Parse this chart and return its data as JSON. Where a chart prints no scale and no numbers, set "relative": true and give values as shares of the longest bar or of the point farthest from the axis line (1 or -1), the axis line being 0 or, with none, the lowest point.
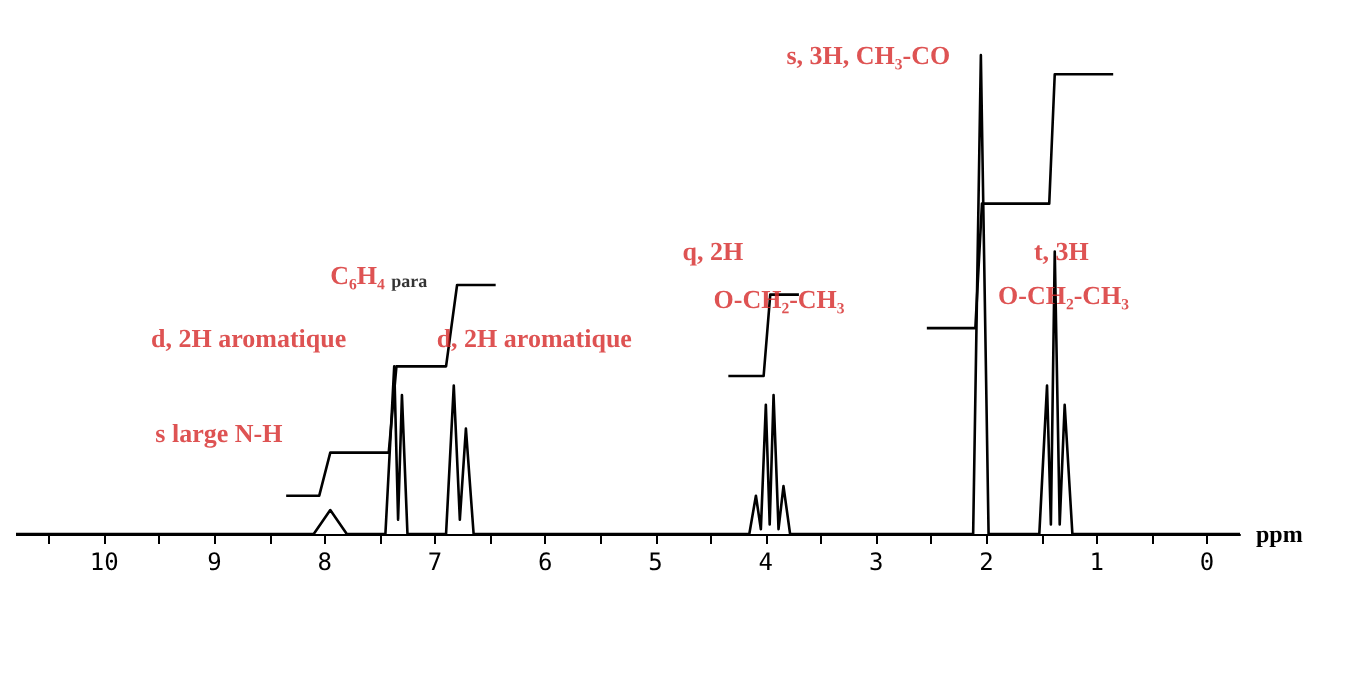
{
  "chart_data": {
    "type": "line",
    "relative": true,
    "xlabel": "ppm",
    "xlim": [
      10.8,
      -0.3
    ],
    "xticks": [
      0,
      {
        "value": 0.5,
        "label": null
      },
      1,
      {
        "value": 1.5,
        "label": null
      },
      2,
      {
        "value": 2.5,
        "label": null
      },
      3,
      {
        "value": 3.5,
        "label": null
      },
      4,
      {
        "value": 4.5,
        "label": null
      },
      5,
      {
        "value": 5.5,
        "label": null
      },
      6,
      {
        "value": 6.5,
        "label": null
      },
      7,
      {
        "value": 7.5,
        "label": null
      },
      8,
      {
        "value": 8.5,
        "label": null
      },
      9,
      {
        "value": 9.5,
        "label": null
      },
      10,
      {
        "value": 10.5,
        "label": null
      }
    ],
    "grid": false,
    "marker": "none",
    "line_style": "solid",
    "series": [
      {
        "color": "#000000",
        "x": [
          10.8,
          8.1,
          7.95,
          7.8,
          7.45,
          7.37,
          7.335,
          7.3,
          7.25,
          6.9,
          6.83,
          6.775,
          6.72,
          6.65,
          4.15,
          4.09,
          4.045,
          4.0,
          3.965,
          3.93,
          3.885,
          3.84,
          3.78,
          2.12,
          2.05,
          1.98,
          1.52,
          1.45,
          1.415,
          1.38,
          1.335,
          1.29,
          1.22,
          -0.3
        ],
        "values": [
          0,
          0,
          0.05,
          0,
          0,
          0.35,
          0.03,
          0.29,
          0,
          0,
          0.31,
          0.03,
          0.22,
          0,
          0,
          0.08,
          0.01,
          0.27,
          0.02,
          0.29,
          0.01,
          0.1,
          0,
          0,
          1,
          0,
          0,
          0.31,
          0.02,
          0.59,
          0.02,
          0.27,
          0,
          0
        ]
      },
      {
        "color": "#000000",
        "x": [
          8.35,
          8.05,
          7.95,
          7.42,
          7.35,
          6.9,
          6.8,
          6.45,
          6.0,
          4.34,
          4.02,
          3.96,
          3.7,
          3.0,
          2.54,
          2.1,
          2.04,
          1.43,
          1.38,
          0.85
        ],
        "values": [
          0.08,
          0.08,
          0.17,
          0.17,
          0.35,
          0.35,
          0.52,
          0.52,
          null,
          0.33,
          0.33,
          0.5,
          0.5,
          null,
          0.43,
          0.43,
          0.69,
          0.69,
          0.96,
          0.96
        ]
      }
    ],
    "annotations": [
      "C₆H₄ $_{para}$",
      "d, 2H aromatique",
      "d, 2H aromatique",
      "s large N-H",
      "q, 2H",
      "O-CH₂-CH₃",
      "s, 3H, CH₃-CO",
      "t, 3H",
      "O-CH₂-CH₃"
    ]
  }
}
